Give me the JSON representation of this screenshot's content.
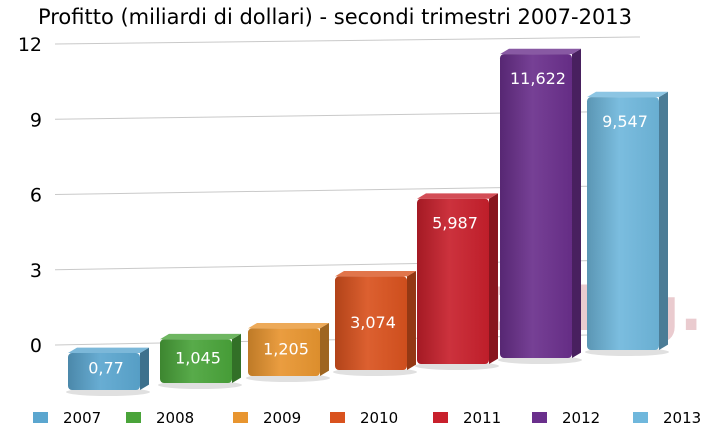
{
  "chart_data": {
    "type": "bar",
    "title": "Profitto (miliardi di dollari) - secondi trimestri 2007-2013",
    "xlabel": "",
    "ylabel": "",
    "ylim": [
      0,
      12
    ],
    "yticks": [
      "0",
      "3",
      "6",
      "9",
      "12"
    ],
    "grid": true,
    "legend_position": "bottom",
    "categories": [
      "2007",
      "2008",
      "2009",
      "2010",
      "2011",
      "2012",
      "2013"
    ],
    "values": [
      0.77,
      1.045,
      1.205,
      3.074,
      5.987,
      11.622,
      9.547
    ],
    "value_labels": [
      "0,77",
      "1,045",
      "1,205",
      "3,074",
      "5,987",
      "11,622",
      "9,547"
    ],
    "colors": [
      "#5ba6cf",
      "#4aa43a",
      "#e8952f",
      "#d9521e",
      "#c8202c",
      "#6a2f8c",
      "#6fb7dc"
    ]
  },
  "watermark": {
    "text": "HDblog.it"
  }
}
